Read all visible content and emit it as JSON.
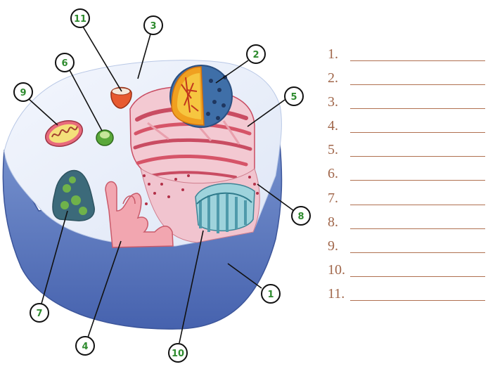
{
  "callouts": [
    "1",
    "2",
    "3",
    "4",
    "5",
    "6",
    "7",
    "8",
    "9",
    "10",
    "11"
  ],
  "answer_blanks": [
    "1.",
    "2.",
    "3.",
    "4.",
    "5.",
    "6.",
    "7.",
    "8.",
    "9.",
    "10.",
    "11."
  ],
  "colors": {
    "badge_outline": "#2e8b2e",
    "cytoplasm": "#eaf0fb",
    "membrane": "#4a68b4",
    "nucleus_outer": "#3f6fa8",
    "nucleolus": "#f0a020",
    "er": "#d65468",
    "golgi": "#72bcc8",
    "label_text": "#a0664a",
    "blank_line": "#b07050"
  }
}
